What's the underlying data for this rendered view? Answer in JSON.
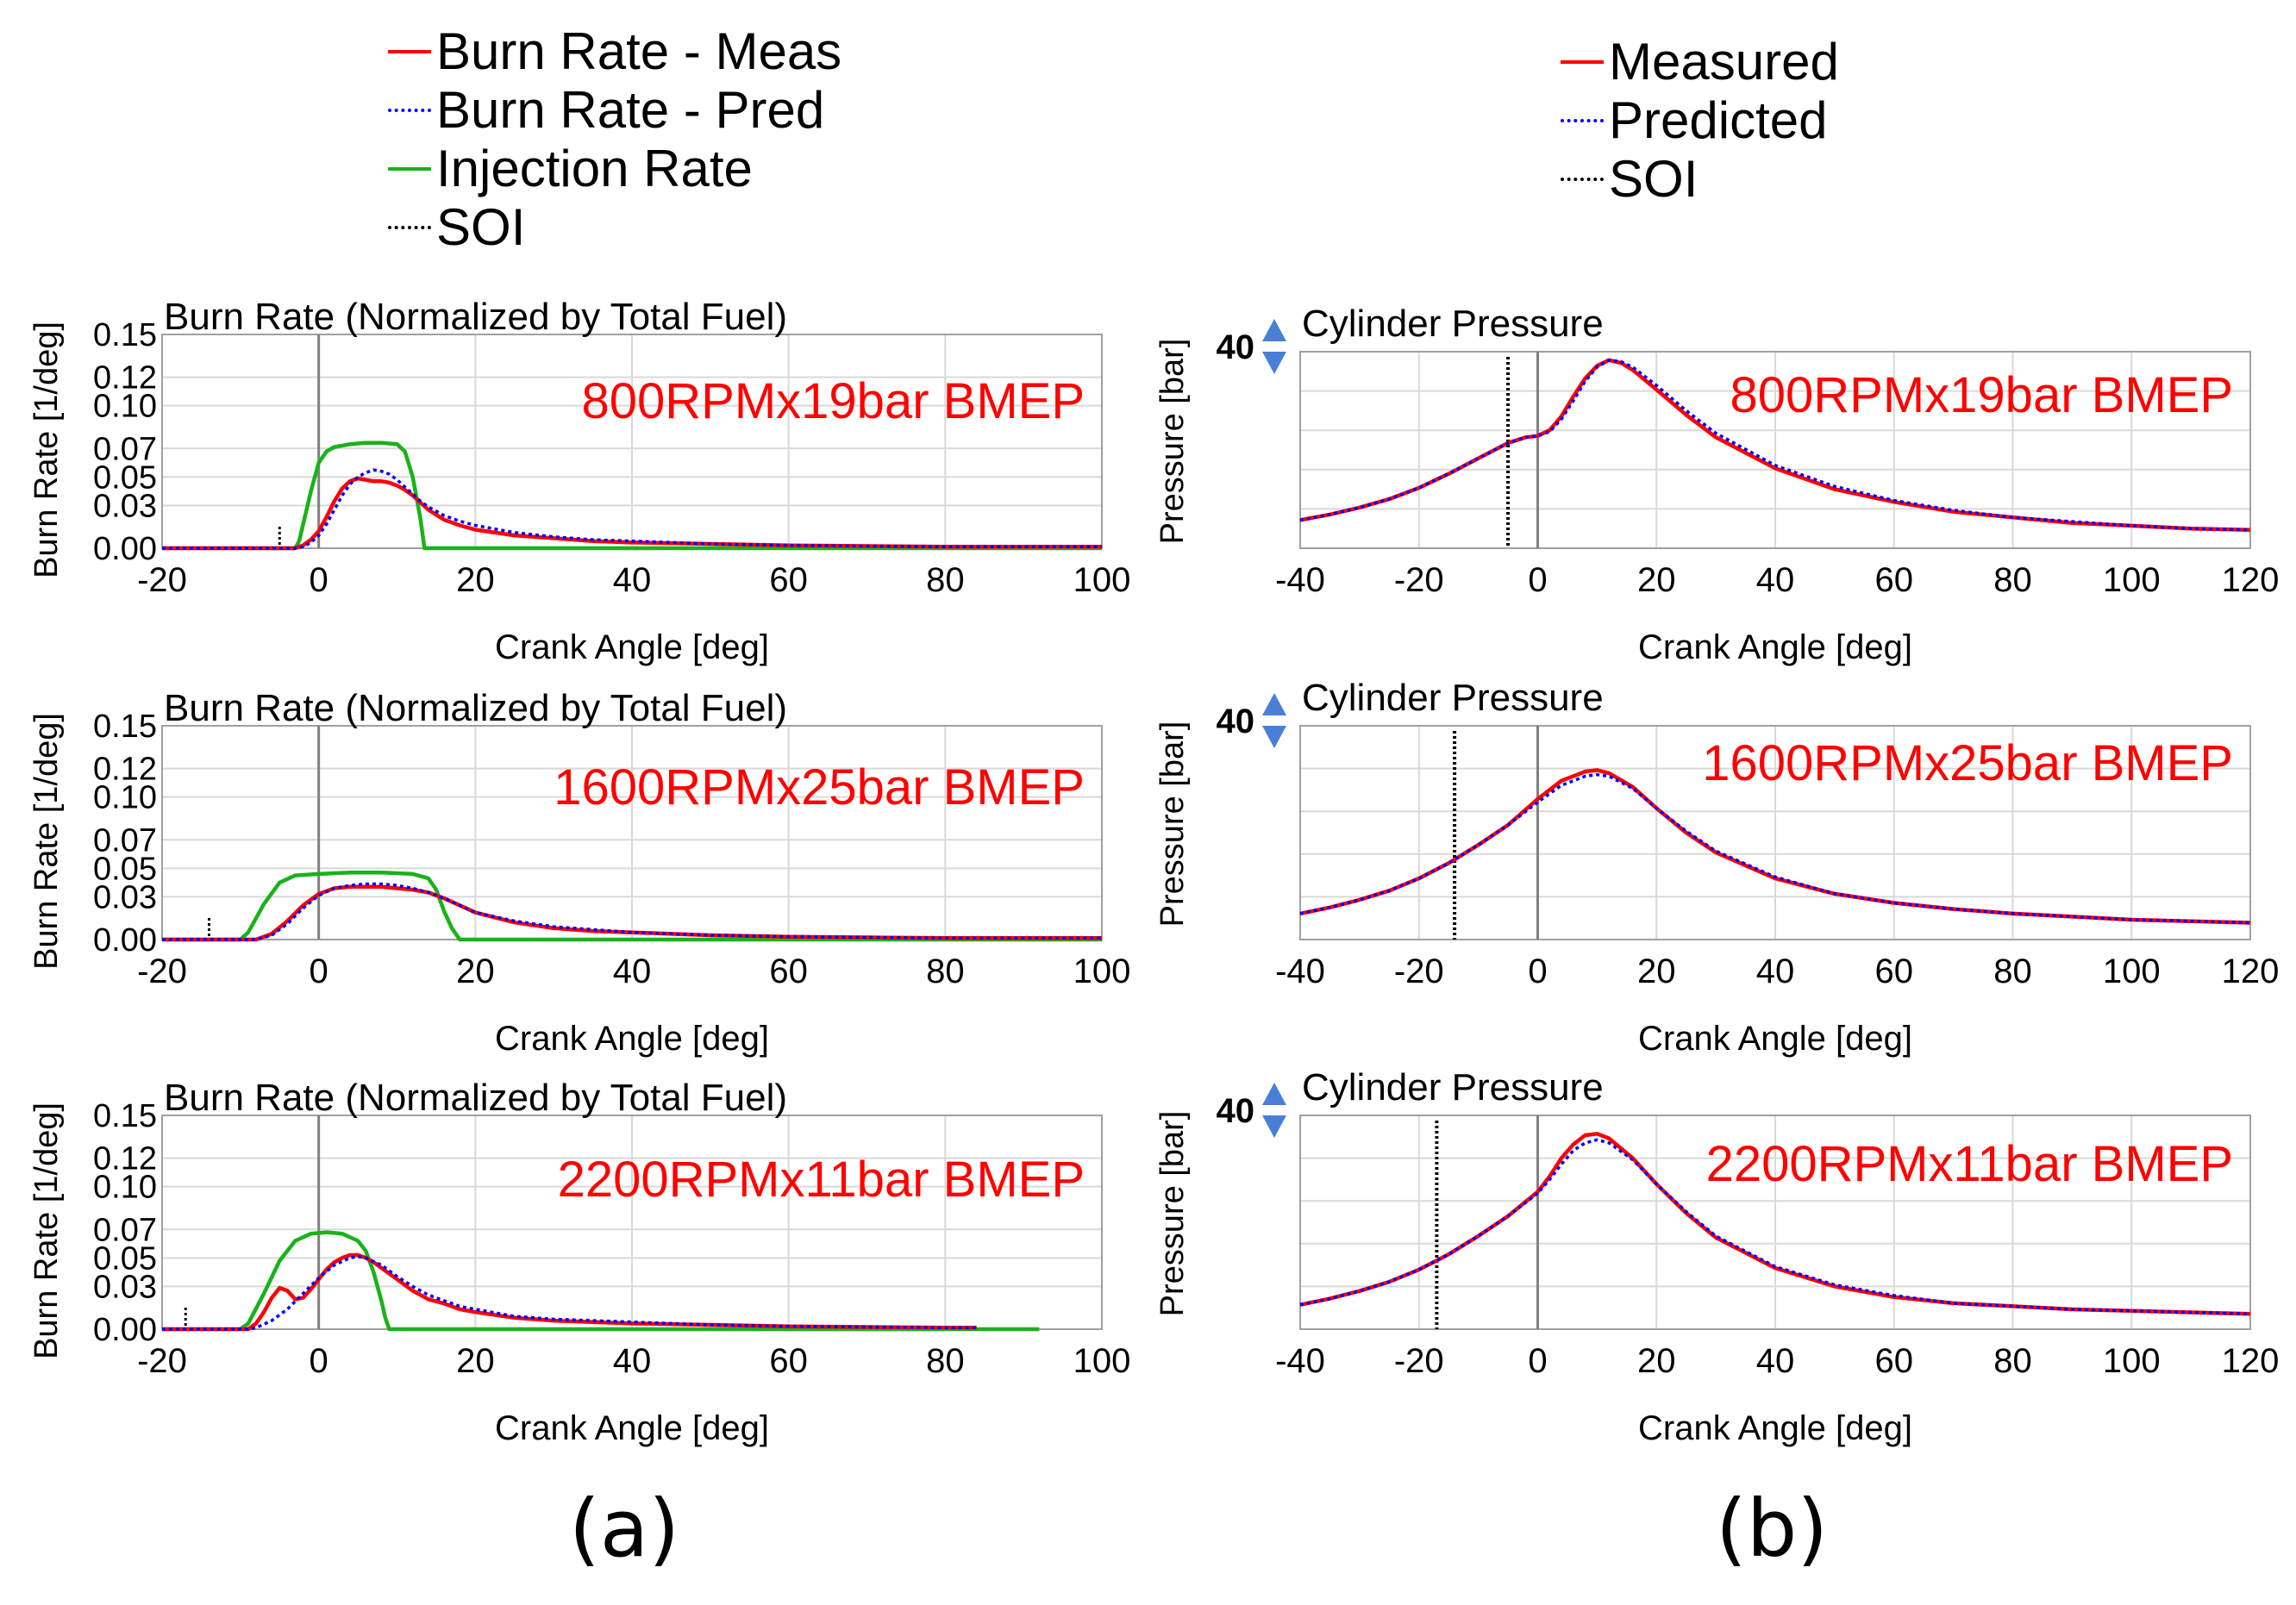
{
  "colors": {
    "measured": "#ff0000",
    "predicted": "#0000ff",
    "injection": "#19b219",
    "soi": "#000000",
    "case_label": "#ff0000",
    "grid": "#d9d9d9",
    "zero_line": "#808080",
    "range_arrow": "#4a7fd8"
  },
  "legend_a": [
    {
      "label": "Burn Rate - Meas",
      "style": "solid",
      "color": "#ff0000"
    },
    {
      "label": "Burn Rate - Pred",
      "style": "dotted",
      "color": "#0000ff"
    },
    {
      "label": "Injection Rate",
      "style": "solid",
      "color": "#19b219"
    },
    {
      "label": "SOI",
      "style": "dotted",
      "color": "#000000"
    }
  ],
  "legend_b": [
    {
      "label": "Measured",
      "style": "solid",
      "color": "#ff0000"
    },
    {
      "label": "Predicted",
      "style": "dotted",
      "color": "#0000ff"
    },
    {
      "label": "SOI",
      "style": "dotted",
      "color": "#000000"
    }
  ],
  "panel_labels": {
    "a": "(a)",
    "b": "(b)"
  },
  "chart_data": [
    {
      "type": "line",
      "id": "burn-800",
      "title": "Burn Rate (Normalized by Total Fuel)",
      "case_label": "800RPMx19bar BMEP",
      "xlabel": "Crank Angle [deg]",
      "ylabel": "Burn Rate [1/deg]",
      "xlim": [
        -20,
        100
      ],
      "ylim": [
        0,
        0.15
      ],
      "xticks": [
        -20,
        0,
        20,
        40,
        60,
        80,
        100
      ],
      "yticks": [
        0,
        0.03,
        0.05,
        0.07,
        0.1,
        0.12,
        0.15
      ],
      "ytick_labels": [
        "0.00",
        "0.03",
        "0.05",
        "0.07",
        "0.10",
        "0.12",
        "0.15"
      ],
      "soi": -5,
      "series": [
        {
          "role": "injection",
          "x": [
            -20,
            -3,
            -2.5,
            -1,
            0,
            1,
            2,
            4,
            6,
            8,
            10,
            11,
            12,
            13,
            13.5,
            20,
            100
          ],
          "y": [
            0,
            0,
            0.005,
            0.04,
            0.06,
            0.068,
            0.071,
            0.073,
            0.074,
            0.074,
            0.073,
            0.068,
            0.05,
            0.02,
            0,
            0,
            0
          ]
        },
        {
          "role": "measured",
          "x": [
            -20,
            -3,
            -2,
            -1,
            0,
            1,
            2,
            3,
            4,
            5,
            6,
            7,
            8,
            9,
            10,
            11,
            12,
            13,
            14,
            16,
            18,
            20,
            25,
            30,
            35,
            40,
            50,
            60,
            70,
            80,
            90,
            100
          ],
          "y": [
            0,
            0,
            0.002,
            0.006,
            0.012,
            0.022,
            0.033,
            0.042,
            0.047,
            0.049,
            0.048,
            0.047,
            0.047,
            0.046,
            0.044,
            0.041,
            0.037,
            0.032,
            0.027,
            0.02,
            0.016,
            0.013,
            0.009,
            0.007,
            0.005,
            0.004,
            0.003,
            0.002,
            0.0015,
            0.001,
            0.001,
            0.001
          ]
        },
        {
          "role": "predicted",
          "x": [
            -20,
            -3,
            -2,
            -1,
            0,
            1,
            2,
            3,
            4,
            5,
            6,
            7,
            8,
            9,
            10,
            11,
            12,
            13,
            14,
            16,
            18,
            20,
            25,
            30,
            35,
            40,
            50,
            60,
            70,
            80,
            90,
            100
          ],
          "y": [
            0,
            0,
            0.001,
            0.004,
            0.009,
            0.017,
            0.027,
            0.037,
            0.045,
            0.05,
            0.053,
            0.055,
            0.054,
            0.052,
            0.048,
            0.043,
            0.038,
            0.033,
            0.029,
            0.023,
            0.019,
            0.016,
            0.011,
            0.008,
            0.006,
            0.005,
            0.003,
            0.002,
            0.0015,
            0.001,
            0.001,
            0.001
          ]
        }
      ]
    },
    {
      "type": "line",
      "id": "press-800",
      "title": "Cylinder Pressure",
      "case_label": "800RPMx19bar BMEP",
      "xlabel": "Crank Angle [deg]",
      "ylabel": "Pressure [bar]",
      "xlim": [
        -40,
        120
      ],
      "ylim": [
        0,
        140
      ],
      "xticks": [
        -40,
        -20,
        0,
        20,
        40,
        60,
        80,
        100,
        120
      ],
      "yticks": [],
      "ytick_labels": [],
      "range_label": "40",
      "soi": -5,
      "series": [
        {
          "role": "measured",
          "x": [
            -40,
            -35,
            -30,
            -25,
            -20,
            -15,
            -10,
            -5,
            -2,
            0,
            2,
            4,
            6,
            8,
            10,
            12,
            14,
            16,
            20,
            25,
            30,
            40,
            50,
            60,
            70,
            80,
            90,
            100,
            110,
            120
          ],
          "y": [
            20,
            24,
            29,
            35,
            43,
            53,
            64,
            75,
            79,
            80,
            84,
            94,
            108,
            121,
            130,
            134,
            132,
            127,
            113,
            95,
            79,
            57,
            42,
            33,
            26,
            22,
            18,
            16,
            14,
            13
          ]
        },
        {
          "role": "predicted",
          "x": [
            -40,
            -35,
            -30,
            -25,
            -20,
            -15,
            -10,
            -5,
            -2,
            0,
            2,
            4,
            6,
            8,
            10,
            12,
            14,
            16,
            20,
            25,
            30,
            40,
            50,
            60,
            70,
            80,
            90,
            100,
            110,
            120
          ],
          "y": [
            20,
            24,
            29,
            35,
            43,
            53,
            64,
            75,
            79,
            80,
            83,
            92,
            105,
            119,
            129,
            134,
            133,
            129,
            116,
            98,
            82,
            59,
            44,
            34,
            27,
            22,
            19,
            16,
            14,
            13
          ]
        }
      ]
    },
    {
      "type": "line",
      "id": "burn-1600",
      "title": "Burn Rate (Normalized by Total Fuel)",
      "case_label": "1600RPMx25bar BMEP",
      "xlabel": "Crank Angle [deg]",
      "ylabel": "Burn Rate [1/deg]",
      "xlim": [
        -20,
        100
      ],
      "ylim": [
        0,
        0.15
      ],
      "xticks": [
        -20,
        0,
        20,
        40,
        60,
        80,
        100
      ],
      "yticks": [
        0,
        0.03,
        0.05,
        0.07,
        0.1,
        0.12,
        0.15
      ],
      "ytick_labels": [
        "0.00",
        "0.03",
        "0.05",
        "0.07",
        "0.10",
        "0.12",
        "0.15"
      ],
      "soi": -14,
      "series": [
        {
          "role": "injection",
          "x": [
            -20,
            -10,
            -9,
            -7,
            -5,
            -3,
            0,
            4,
            8,
            12,
            14,
            15,
            16,
            17,
            18,
            20,
            100
          ],
          "y": [
            0,
            0,
            0.005,
            0.025,
            0.04,
            0.045,
            0.046,
            0.047,
            0.047,
            0.046,
            0.043,
            0.035,
            0.02,
            0.008,
            0,
            0,
            0
          ]
        },
        {
          "role": "measured",
          "x": [
            -20,
            -8,
            -6,
            -4,
            -2,
            0,
            2,
            4,
            6,
            8,
            10,
            12,
            14,
            16,
            18,
            20,
            25,
            30,
            35,
            40,
            50,
            60,
            70,
            80,
            90,
            100
          ],
          "y": [
            0,
            0,
            0.004,
            0.013,
            0.024,
            0.032,
            0.036,
            0.037,
            0.037,
            0.037,
            0.036,
            0.035,
            0.033,
            0.029,
            0.024,
            0.019,
            0.012,
            0.008,
            0.006,
            0.005,
            0.003,
            0.002,
            0.0015,
            0.001,
            0.001,
            0.001
          ]
        },
        {
          "role": "predicted",
          "x": [
            -20,
            -8,
            -6,
            -4,
            -2,
            0,
            2,
            4,
            6,
            8,
            10,
            12,
            14,
            16,
            18,
            20,
            25,
            30,
            35,
            40,
            50,
            60,
            70,
            80,
            90,
            100
          ],
          "y": [
            0,
            0,
            0.003,
            0.011,
            0.022,
            0.031,
            0.036,
            0.038,
            0.039,
            0.039,
            0.038,
            0.036,
            0.033,
            0.029,
            0.024,
            0.019,
            0.013,
            0.009,
            0.007,
            0.005,
            0.003,
            0.002,
            0.0015,
            0.001,
            0.001,
            0.001
          ]
        }
      ]
    },
    {
      "type": "line",
      "id": "press-1600",
      "title": "Cylinder Pressure",
      "case_label": "1600RPMx25bar BMEP",
      "xlabel": "Crank Angle [deg]",
      "ylabel": "Pressure [bar]",
      "xlim": [
        -40,
        120
      ],
      "ylim": [
        0,
        140
      ],
      "xticks": [
        -40,
        -20,
        0,
        20,
        40,
        60,
        80,
        100,
        120
      ],
      "yticks": [],
      "ytick_labels": [],
      "range_label": "40",
      "soi": -14,
      "series": [
        {
          "role": "measured",
          "x": [
            -40,
            -35,
            -30,
            -25,
            -20,
            -15,
            -10,
            -5,
            0,
            4,
            8,
            10,
            12,
            16,
            20,
            25,
            30,
            40,
            50,
            60,
            70,
            80,
            90,
            100,
            110,
            120
          ],
          "y": [
            17,
            21,
            26,
            32,
            40,
            50,
            62,
            75,
            92,
            104,
            110,
            111,
            109,
            100,
            86,
            70,
            57,
            40,
            30,
            24,
            20,
            17,
            15,
            13,
            12,
            11
          ]
        },
        {
          "role": "predicted",
          "x": [
            -40,
            -35,
            -30,
            -25,
            -20,
            -15,
            -10,
            -5,
            0,
            4,
            8,
            10,
            12,
            16,
            20,
            25,
            30,
            40,
            50,
            60,
            70,
            80,
            90,
            100,
            110,
            120
          ],
          "y": [
            17,
            21,
            26,
            32,
            40,
            50,
            62,
            75,
            90,
            101,
            107,
            108,
            107,
            99,
            86,
            71,
            58,
            41,
            30,
            24,
            20,
            17,
            15,
            13,
            12,
            11
          ]
        }
      ]
    },
    {
      "type": "line",
      "id": "burn-2200",
      "title": "Burn Rate (Normalized by Total Fuel)",
      "case_label": "2200RPMx11bar BMEP",
      "xlabel": "Crank Angle [deg]",
      "ylabel": "Burn Rate [1/deg]",
      "xlim": [
        -20,
        100
      ],
      "ylim": [
        0,
        0.15
      ],
      "xticks": [
        -20,
        0,
        20,
        40,
        60,
        80,
        100
      ],
      "yticks": [
        0,
        0.03,
        0.05,
        0.07,
        0.1,
        0.12,
        0.15
      ],
      "ytick_labels": [
        "0.00",
        "0.03",
        "0.05",
        "0.07",
        "0.10",
        "0.12",
        "0.15"
      ],
      "soi": -17,
      "series": [
        {
          "role": "injection",
          "x": [
            -20,
            -10,
            -9,
            -7,
            -5,
            -3,
            -1,
            1,
            3,
            5,
            6,
            7,
            8,
            8.5,
            9,
            10,
            92
          ],
          "y": [
            0,
            0,
            0.004,
            0.025,
            0.048,
            0.062,
            0.067,
            0.068,
            0.067,
            0.062,
            0.055,
            0.04,
            0.02,
            0.008,
            0,
            0,
            0
          ]
        },
        {
          "role": "measured",
          "x": [
            -20,
            -9,
            -8,
            -7,
            -6,
            -5,
            -4,
            -3,
            -2,
            -1,
            0,
            1,
            2,
            3,
            4,
            5,
            6,
            7,
            8,
            10,
            12,
            14,
            16,
            18,
            20,
            25,
            30,
            40,
            50,
            60,
            70,
            80,
            84
          ],
          "y": [
            0,
            0,
            0.004,
            0.012,
            0.022,
            0.029,
            0.027,
            0.021,
            0.022,
            0.028,
            0.035,
            0.042,
            0.047,
            0.05,
            0.052,
            0.052,
            0.05,
            0.047,
            0.043,
            0.035,
            0.027,
            0.021,
            0.018,
            0.014,
            0.012,
            0.008,
            0.006,
            0.004,
            0.003,
            0.002,
            0.0015,
            0.001,
            0.001
          ]
        },
        {
          "role": "predicted",
          "x": [
            -20,
            -9,
            -8,
            -6,
            -4,
            -2,
            0,
            2,
            4,
            5,
            6,
            8,
            10,
            12,
            14,
            16,
            18,
            20,
            25,
            30,
            40,
            50,
            60,
            70,
            80,
            84
          ],
          "y": [
            0,
            0,
            0.001,
            0.006,
            0.014,
            0.025,
            0.036,
            0.045,
            0.05,
            0.051,
            0.05,
            0.045,
            0.037,
            0.03,
            0.024,
            0.02,
            0.016,
            0.014,
            0.009,
            0.007,
            0.005,
            0.003,
            0.002,
            0.0015,
            0.001,
            0.001
          ]
        }
      ]
    },
    {
      "type": "line",
      "id": "press-2200",
      "title": "Cylinder Pressure",
      "case_label": "2200RPMx11bar BMEP",
      "xlabel": "Crank Angle [deg]",
      "ylabel": "Pressure [bar]",
      "xlim": [
        -40,
        120
      ],
      "ylim": [
        0,
        140
      ],
      "xticks": [
        -40,
        -20,
        0,
        20,
        40,
        60,
        80,
        100,
        120
      ],
      "yticks": [],
      "ytick_labels": [],
      "range_label": "40",
      "soi": -17,
      "series": [
        {
          "role": "measured",
          "x": [
            -40,
            -35,
            -30,
            -25,
            -20,
            -15,
            -10,
            -5,
            0,
            2,
            4,
            6,
            8,
            10,
            12,
            16,
            20,
            25,
            30,
            40,
            50,
            60,
            70,
            80,
            90,
            100,
            110,
            120
          ],
          "y": [
            16,
            20,
            25,
            31,
            39,
            49,
            61,
            74,
            90,
            100,
            112,
            121,
            127,
            128,
            125,
            112,
            95,
            76,
            60,
            40,
            28,
            21,
            17,
            15,
            13,
            12,
            11,
            10
          ]
        },
        {
          "role": "predicted",
          "x": [
            -40,
            -35,
            -30,
            -25,
            -20,
            -15,
            -10,
            -5,
            0,
            2,
            4,
            6,
            8,
            10,
            12,
            16,
            20,
            25,
            30,
            40,
            50,
            60,
            70,
            80,
            90,
            100,
            110,
            120
          ],
          "y": [
            16,
            20,
            25,
            31,
            39,
            49,
            61,
            74,
            89,
            98,
            108,
            117,
            122,
            124,
            122,
            111,
            95,
            77,
            61,
            41,
            29,
            22,
            17,
            15,
            13,
            12,
            11,
            10
          ]
        }
      ]
    }
  ]
}
